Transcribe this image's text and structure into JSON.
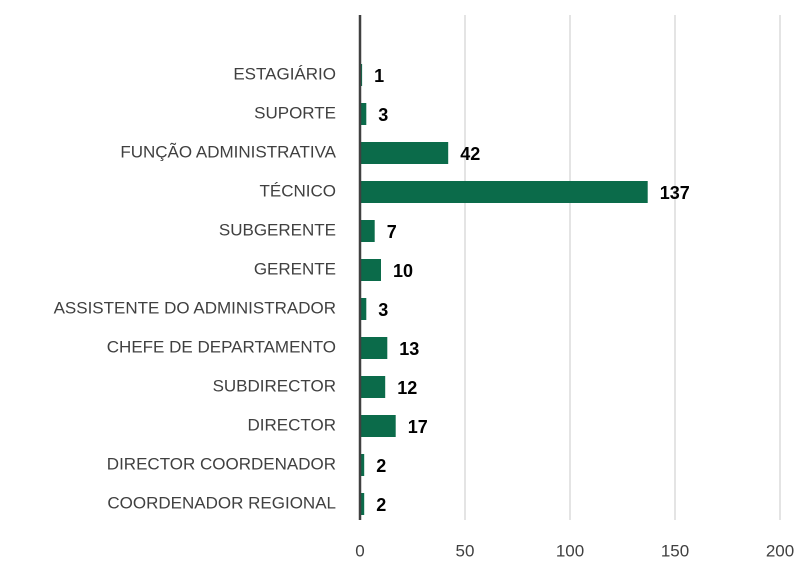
{
  "chart_data": {
    "type": "barh",
    "categories": [
      "ESTAGIÁRIO",
      "SUPORTE",
      "FUNÇÃO ADMINISTRATIVA",
      "TÉCNICO",
      "SUBGERENTE",
      "GERENTE",
      "ASSISTENTE DO ADMINISTRADOR",
      "CHEFE DE DEPARTAMENTO",
      "SUBDIRECTOR",
      "DIRECTOR",
      "DIRECTOR COORDENADOR",
      "COORDENADOR REGIONAL"
    ],
    "values": [
      1,
      3,
      42,
      137,
      7,
      10,
      3,
      13,
      12,
      17,
      2,
      2
    ],
    "color": "#0b6b4a",
    "xlim": [
      0,
      200
    ],
    "xticks": [
      0,
      50,
      100,
      150,
      200
    ],
    "grid": true
  }
}
